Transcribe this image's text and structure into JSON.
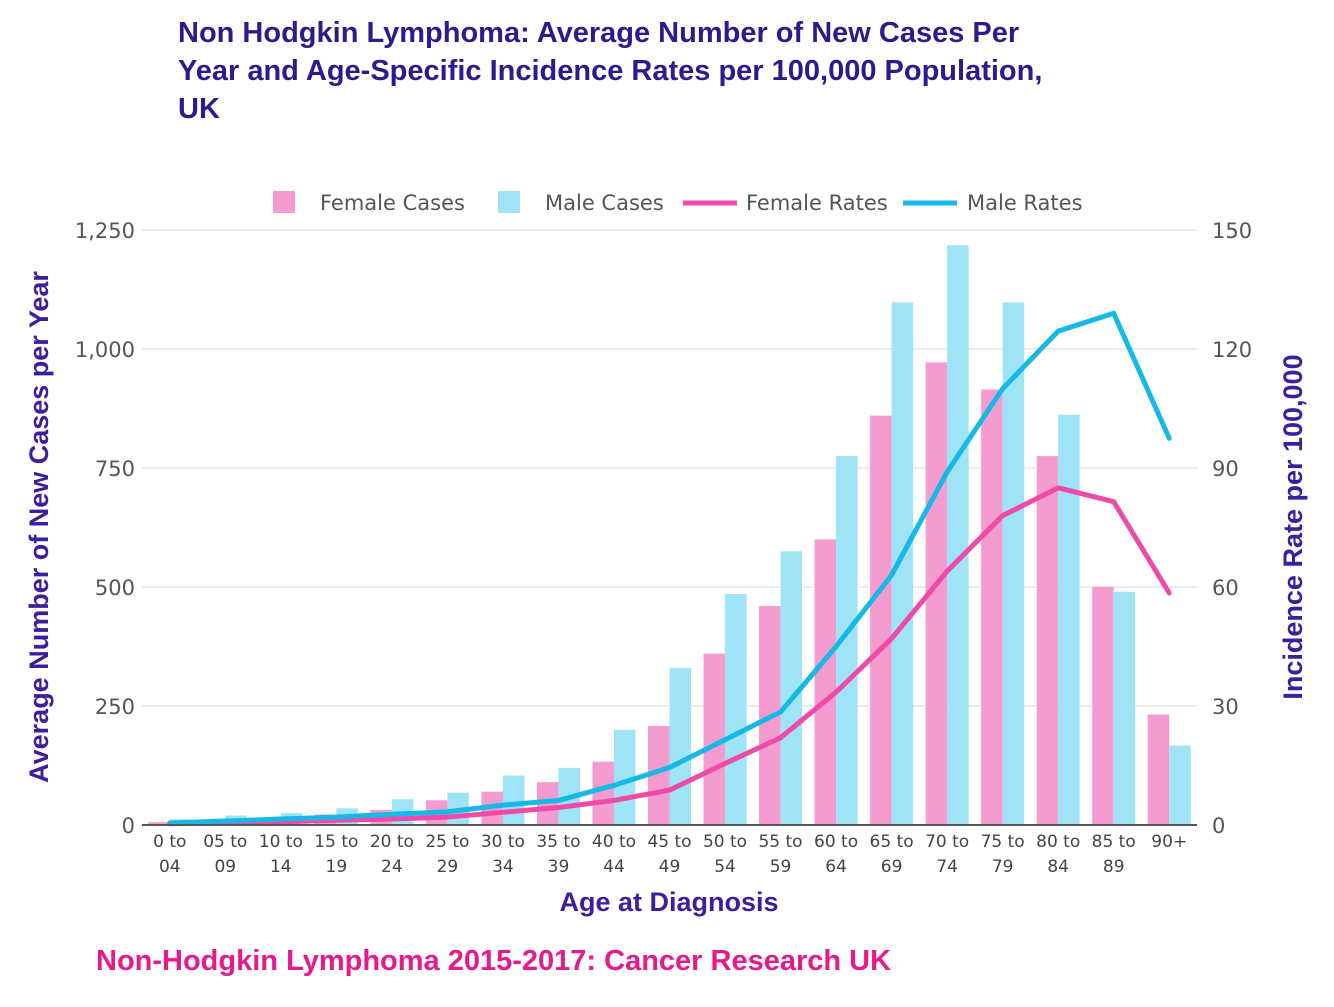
{
  "title": {
    "line1": "Non Hodgkin Lymphoma: Average Number of New Cases Per",
    "line2": "Year and Age-Specific Incidence Rates per 100,000 Population,",
    "line3": "UK"
  },
  "source": "Non-Hodgkin Lymphoma  2015-2017: Cancer Research UK",
  "colors": {
    "female_cases": "#f49ccf",
    "male_cases": "#9ee3f6",
    "female_rates": "#ef4aa8",
    "male_rates": "#16b9e6",
    "axis_title": "#3a1f9e"
  },
  "chart_data": {
    "type": "bar",
    "title": "Non Hodgkin Lymphoma: Average Number of New Cases Per Year and Age-Specific Incidence Rates per 100,000 Population, UK",
    "xlabel": "Age at Diagnosis",
    "ylabel": "Average Number of New Cases per Year",
    "y2label": "Incidence Rate per 100,000",
    "categories": [
      [
        "0 to",
        "04"
      ],
      [
        "05 to",
        "09"
      ],
      [
        "10 to",
        "14"
      ],
      [
        "15 to",
        "19"
      ],
      [
        "20 to",
        "24"
      ],
      [
        "25 to",
        "29"
      ],
      [
        "30 to",
        "34"
      ],
      [
        "35 to",
        "39"
      ],
      [
        "40 to",
        "44"
      ],
      [
        "45 to",
        "49"
      ],
      [
        "50 to",
        "54"
      ],
      [
        "55 to",
        "59"
      ],
      [
        "60 to",
        "64"
      ],
      [
        "65 to",
        "69"
      ],
      [
        "70 to",
        "74"
      ],
      [
        "75 to",
        "79"
      ],
      [
        "80 to",
        "84"
      ],
      [
        "85 to",
        "89"
      ],
      [
        "90+",
        ""
      ]
    ],
    "ylim": [
      0,
      1250
    ],
    "yticks": [
      0,
      250,
      500,
      750,
      1000,
      1250
    ],
    "ytick_labels": [
      "0",
      "250",
      "500",
      "750",
      "1,000",
      "1,250"
    ],
    "y2lim": [
      0,
      150
    ],
    "y2ticks": [
      0,
      30,
      60,
      90,
      120,
      150
    ],
    "y2tick_labels": [
      "0",
      "30",
      "60",
      "90",
      "120",
      "150"
    ],
    "legend": [
      "Female Cases",
      "Male Cases",
      "Female Rates",
      "Male Rates"
    ],
    "legend_position": "top",
    "series": [
      {
        "name": "Female Cases",
        "type": "bar",
        "axis": "left",
        "values": [
          6,
          10,
          15,
          22,
          32,
          52,
          70,
          90,
          133,
          208,
          360,
          460,
          600,
          860,
          972,
          915,
          775,
          500,
          232
        ]
      },
      {
        "name": "Male Cases",
        "type": "bar",
        "axis": "left",
        "values": [
          12,
          20,
          25,
          35,
          54,
          68,
          104,
          120,
          200,
          330,
          485,
          575,
          775,
          1098,
          1218,
          1098,
          862,
          490,
          167
        ]
      },
      {
        "name": "Female Rates",
        "type": "line",
        "axis": "right",
        "values": [
          0.3,
          0.6,
          0.8,
          1.2,
          1.5,
          2.0,
          3.2,
          4.4,
          6.2,
          8.8,
          15.5,
          22.0,
          33.5,
          47.0,
          64.0,
          78.0,
          85.0,
          81.5,
          58.5
        ]
      },
      {
        "name": "Male Rates",
        "type": "line",
        "axis": "right",
        "values": [
          0.5,
          1.0,
          1.5,
          2.0,
          2.7,
          3.3,
          5.0,
          6.2,
          10.0,
          14.5,
          21.5,
          28.5,
          45.0,
          63.0,
          89.0,
          110.0,
          124.5,
          129.0,
          97.5
        ]
      }
    ]
  }
}
